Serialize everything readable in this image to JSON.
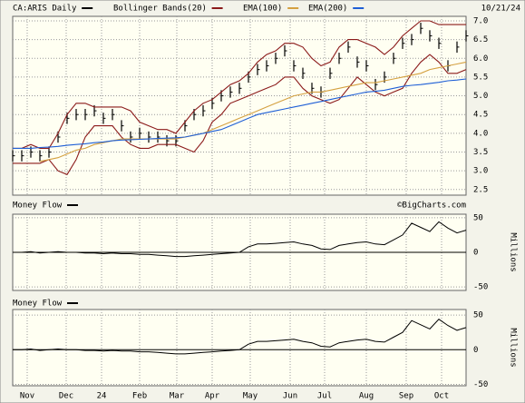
{
  "chart_data": [
    {
      "type": "ohlc",
      "date_label": "10/21/24",
      "x": [
        0,
        5,
        10,
        15,
        20,
        25,
        30,
        35,
        40,
        45,
        50,
        55,
        60,
        65,
        70,
        75,
        80,
        85,
        90,
        95,
        100,
        105,
        110,
        115,
        120,
        125,
        130,
        135,
        140,
        145,
        150,
        155,
        160,
        165,
        170,
        175,
        180,
        185,
        190,
        195,
        200,
        205,
        210,
        215,
        220,
        225,
        230,
        235,
        240,
        245,
        250
      ],
      "xlim": [
        0,
        250
      ],
      "xticks": [
        {
          "value": 8,
          "label": "Nov"
        },
        {
          "value": 29.5,
          "label": "Dec"
        },
        {
          "value": 49,
          "label": "24"
        },
        {
          "value": 70,
          "label": "Feb"
        },
        {
          "value": 90.5,
          "label": "Mar"
        },
        {
          "value": 110,
          "label": "Apr"
        },
        {
          "value": 131,
          "label": "May"
        },
        {
          "value": 153,
          "label": "Jun"
        },
        {
          "value": 172,
          "label": "Jul"
        },
        {
          "value": 195,
          "label": "Aug"
        },
        {
          "value": 217,
          "label": "Sep"
        },
        {
          "value": 236.5,
          "label": "Oct"
        }
      ],
      "ylim": [
        2.35,
        7.12
      ],
      "yticks": [
        {
          "value": 2.5,
          "label": "2.5"
        },
        {
          "value": 3,
          "label": "3.0"
        },
        {
          "value": 3.5,
          "label": "3.5"
        },
        {
          "value": 4,
          "label": "4.0"
        },
        {
          "value": 4.5,
          "label": "4.5"
        },
        {
          "value": 5,
          "label": "5.0"
        },
        {
          "value": 5.5,
          "label": "5.5"
        },
        {
          "value": 6,
          "label": "6.0"
        },
        {
          "value": 6.5,
          "label": "6.5"
        },
        {
          "value": 7,
          "label": "7.0"
        }
      ],
      "grid": true,
      "series": [
        {
          "name": "CA:ARIS Daily",
          "color": "#000000",
          "values": [
            3.4,
            3.4,
            3.5,
            3.4,
            3.5,
            3.9,
            4.4,
            4.5,
            4.5,
            4.6,
            4.4,
            4.5,
            4.2,
            3.9,
            4.0,
            3.9,
            3.9,
            3.8,
            3.8,
            4.2,
            4.5,
            4.6,
            4.8,
            5.0,
            5.1,
            5.2,
            5.5,
            5.7,
            5.8,
            6.0,
            6.2,
            5.8,
            5.6,
            5.2,
            5.1,
            5.6,
            6.0,
            6.3,
            5.9,
            5.8,
            5.3,
            5.5,
            6.0,
            6.4,
            6.5,
            6.8,
            6.6,
            6.4,
            5.8,
            6.3,
            6.6
          ],
          "high": [
            3.55,
            3.55,
            3.65,
            3.55,
            3.65,
            4.05,
            4.55,
            4.65,
            4.65,
            4.75,
            4.55,
            4.65,
            4.35,
            4.05,
            4.15,
            4.05,
            4.05,
            3.95,
            3.95,
            4.35,
            4.65,
            4.75,
            4.95,
            5.15,
            5.25,
            5.35,
            5.65,
            5.85,
            5.95,
            6.15,
            6.35,
            5.95,
            5.75,
            5.35,
            5.25,
            5.75,
            6.15,
            6.45,
            6.05,
            5.95,
            5.45,
            5.65,
            6.15,
            6.55,
            6.65,
            6.95,
            6.75,
            6.55,
            5.95,
            6.45,
            6.75
          ],
          "low": [
            3.25,
            3.25,
            3.35,
            3.25,
            3.35,
            3.75,
            4.25,
            4.35,
            4.35,
            4.45,
            4.25,
            4.35,
            4.05,
            3.75,
            3.85,
            3.75,
            3.75,
            3.65,
            3.65,
            4.05,
            4.35,
            4.45,
            4.65,
            4.85,
            4.95,
            5.05,
            5.35,
            5.55,
            5.65,
            5.85,
            6.05,
            5.65,
            5.45,
            5.05,
            4.95,
            5.45,
            5.85,
            6.15,
            5.75,
            5.65,
            5.15,
            5.35,
            5.85,
            6.25,
            6.35,
            6.65,
            6.45,
            6.25,
            5.65,
            6.15,
            6.45
          ]
        },
        {
          "name": "Bollinger Bands(20)",
          "color": "#8b1a1a",
          "values": [
            3.6,
            3.6,
            3.7,
            3.6,
            3.6,
            4.0,
            4.5,
            4.8,
            4.8,
            4.7,
            4.7,
            4.7,
            4.7,
            4.6,
            4.3,
            4.2,
            4.1,
            4.1,
            4.0,
            4.3,
            4.6,
            4.8,
            4.9,
            5.1,
            5.3,
            5.4,
            5.6,
            5.9,
            6.1,
            6.2,
            6.4,
            6.4,
            6.3,
            6.0,
            5.8,
            5.9,
            6.3,
            6.5,
            6.5,
            6.4,
            6.3,
            6.1,
            6.3,
            6.6,
            6.8,
            7.0,
            7.0,
            6.9,
            6.9,
            6.9,
            6.9
          ],
          "lower": [
            3.2,
            3.2,
            3.2,
            3.2,
            3.3,
            3.0,
            2.9,
            3.3,
            3.9,
            4.2,
            4.2,
            4.2,
            3.9,
            3.7,
            3.6,
            3.6,
            3.7,
            3.7,
            3.7,
            3.6,
            3.5,
            3.8,
            4.3,
            4.5,
            4.8,
            4.9,
            5.0,
            5.1,
            5.2,
            5.3,
            5.5,
            5.5,
            5.2,
            5.0,
            4.9,
            4.8,
            4.9,
            5.2,
            5.5,
            5.3,
            5.1,
            5.0,
            5.1,
            5.2,
            5.6,
            5.9,
            6.1,
            5.9,
            5.6,
            5.6,
            5.7
          ]
        },
        {
          "name": "EMA(100)",
          "color": "#d4a040",
          "values": [
            null,
            null,
            null,
            3.25,
            3.3,
            3.35,
            3.45,
            3.55,
            3.6,
            3.7,
            3.75,
            3.8,
            3.85,
            3.85,
            3.85,
            3.85,
            3.85,
            3.85,
            3.85,
            3.9,
            3.95,
            4.0,
            4.1,
            4.2,
            4.3,
            4.4,
            4.5,
            4.6,
            4.7,
            4.8,
            4.9,
            5.0,
            5.05,
            5.1,
            5.1,
            5.15,
            5.2,
            5.25,
            5.3,
            5.35,
            5.35,
            5.4,
            5.45,
            5.5,
            5.55,
            5.6,
            5.7,
            5.75,
            5.8,
            5.85,
            5.9
          ]
        },
        {
          "name": "EMA(200)",
          "color": "#1f5fd6",
          "values": [
            3.6,
            3.6,
            3.6,
            3.62,
            3.63,
            3.65,
            3.68,
            3.7,
            3.72,
            3.75,
            3.77,
            3.8,
            3.82,
            3.83,
            3.84,
            3.85,
            3.86,
            3.87,
            3.88,
            3.9,
            3.95,
            4.0,
            4.05,
            4.1,
            4.2,
            4.3,
            4.4,
            4.5,
            4.55,
            4.6,
            4.65,
            4.7,
            4.75,
            4.8,
            4.85,
            4.9,
            4.95,
            5.0,
            5.05,
            5.1,
            5.12,
            5.15,
            5.2,
            5.25,
            5.28,
            5.3,
            5.33,
            5.36,
            5.4,
            5.42,
            5.45
          ]
        }
      ]
    },
    {
      "type": "line",
      "credit": "©BigCharts.com",
      "y_label": "Millions",
      "x": [
        0,
        5,
        10,
        15,
        20,
        25,
        30,
        35,
        40,
        45,
        50,
        55,
        60,
        65,
        70,
        75,
        80,
        85,
        90,
        95,
        100,
        105,
        110,
        115,
        120,
        125,
        130,
        135,
        140,
        145,
        150,
        155,
        160,
        165,
        170,
        175,
        180,
        185,
        190,
        195,
        200,
        205,
        210,
        215,
        220,
        225,
        230,
        235,
        240,
        245,
        250
      ],
      "xlim": [
        0,
        250
      ],
      "xticks": [
        8,
        29.5,
        49,
        70,
        90.5,
        110,
        131,
        153,
        172,
        195,
        217,
        236.5
      ],
      "ylim": [
        -55,
        55
      ],
      "yticks": [
        -50,
        0,
        50
      ],
      "grid": true,
      "series": [
        {
          "name": "Money Flow",
          "color": "#000000",
          "values": [
            0,
            0,
            1,
            -1,
            0,
            1,
            0,
            0,
            -1,
            -1,
            -2,
            -1,
            -2,
            -2,
            -3,
            -3,
            -4,
            -5,
            -6,
            -6,
            -5,
            -4,
            -3,
            -2,
            -1,
            0,
            8,
            12,
            12,
            13,
            14,
            15,
            12,
            10,
            5,
            4,
            10,
            12,
            14,
            15,
            12,
            11,
            18,
            25,
            42,
            36,
            30,
            44,
            35,
            28,
            32
          ]
        }
      ]
    },
    {
      "type": "line",
      "y_label": "Millions",
      "x": [
        0,
        5,
        10,
        15,
        20,
        25,
        30,
        35,
        40,
        45,
        50,
        55,
        60,
        65,
        70,
        75,
        80,
        85,
        90,
        95,
        100,
        105,
        110,
        115,
        120,
        125,
        130,
        135,
        140,
        145,
        150,
        155,
        160,
        165,
        170,
        175,
        180,
        185,
        190,
        195,
        200,
        205,
        210,
        215,
        220,
        225,
        230,
        235,
        240,
        245,
        250
      ],
      "xlim": [
        0,
        250
      ],
      "xticks": [
        8,
        29.5,
        49,
        70,
        90.5,
        110,
        131,
        153,
        172,
        195,
        217,
        236.5
      ],
      "ylim": [
        -52,
        58
      ],
      "yticks": [
        -50,
        0,
        50
      ],
      "grid": true,
      "series": [
        {
          "name": "Money Flow",
          "color": "#000000",
          "values": [
            0,
            0,
            1,
            -1,
            0,
            1,
            0,
            0,
            -1,
            -1,
            -2,
            -1,
            -2,
            -2,
            -3,
            -3,
            -4,
            -5,
            -6,
            -6,
            -5,
            -4,
            -3,
            -2,
            -1,
            0,
            8,
            12,
            12,
            13,
            14,
            15,
            12,
            10,
            5,
            4,
            10,
            12,
            14,
            15,
            12,
            11,
            18,
            25,
            42,
            36,
            30,
            44,
            35,
            28,
            32
          ]
        }
      ]
    }
  ]
}
